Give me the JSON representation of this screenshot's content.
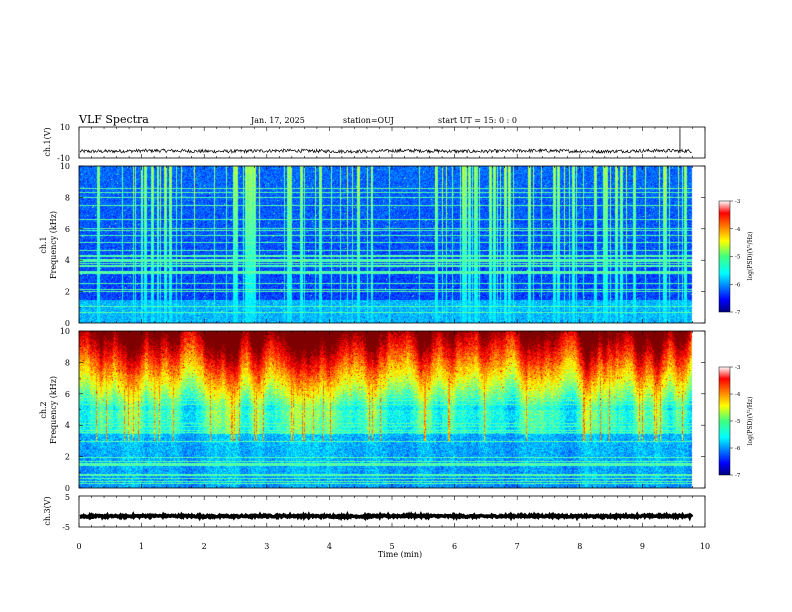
{
  "header": {
    "title": "VLF Spectra",
    "date": "Jan. 17, 2025",
    "station": "station=OUJ",
    "start_ut": "start UT =  15: 0  : 0"
  },
  "chart_data": [
    {
      "type": "line",
      "panel": "ch1-waveform",
      "ylabel": "ch.1(V)",
      "ylim": [
        -10,
        10
      ],
      "yticks": [
        "10",
        "-10"
      ],
      "xlim": [
        0,
        10
      ],
      "trace_level": -5.5,
      "trace_end_min": 9.8,
      "spike_at_min": 9.6
    },
    {
      "type": "heatmap",
      "panel": "ch1-spectrogram",
      "ylabel_line1": "ch.1",
      "ylabel_line2": "Frequency (kHz)",
      "ylim": [
        0,
        10
      ],
      "yticks": [
        "0",
        "2",
        "4",
        "6",
        "8",
        "10"
      ],
      "xlim": [
        0,
        10
      ],
      "data_end_min": 9.8,
      "colorbar": {
        "label": "log(PSD)(V²/Hz)",
        "range": [
          -7,
          -3
        ],
        "ticks": [
          "-3",
          "-4",
          "-5",
          "-6",
          "-7"
        ]
      }
    },
    {
      "type": "heatmap",
      "panel": "ch2-spectrogram",
      "ylabel_line1": "ch.2",
      "ylabel_line2": "Frequency (kHz)",
      "ylim": [
        0,
        10
      ],
      "yticks": [
        "0",
        "2",
        "4",
        "6",
        "8",
        "10"
      ],
      "xlim": [
        0,
        10
      ],
      "data_end_min": 9.8,
      "colorbar": {
        "label": "log(PSD)(V²/Hz)",
        "range": [
          -7,
          -3
        ],
        "ticks": [
          "-3",
          "-4",
          "-5",
          "-6",
          "-7"
        ]
      }
    },
    {
      "type": "line",
      "panel": "ch3-waveform",
      "ylabel": "ch.3(V)",
      "ylim": [
        -5,
        5
      ],
      "yticks": [
        "5",
        "-5"
      ],
      "xlim": [
        0,
        10
      ],
      "trace_level": -1.5,
      "trace_end_min": 9.8
    }
  ],
  "xaxis": {
    "label": "Time (min)",
    "ticks": [
      "0",
      "1",
      "2",
      "3",
      "4",
      "5",
      "6",
      "7",
      "8",
      "9",
      "10"
    ]
  }
}
